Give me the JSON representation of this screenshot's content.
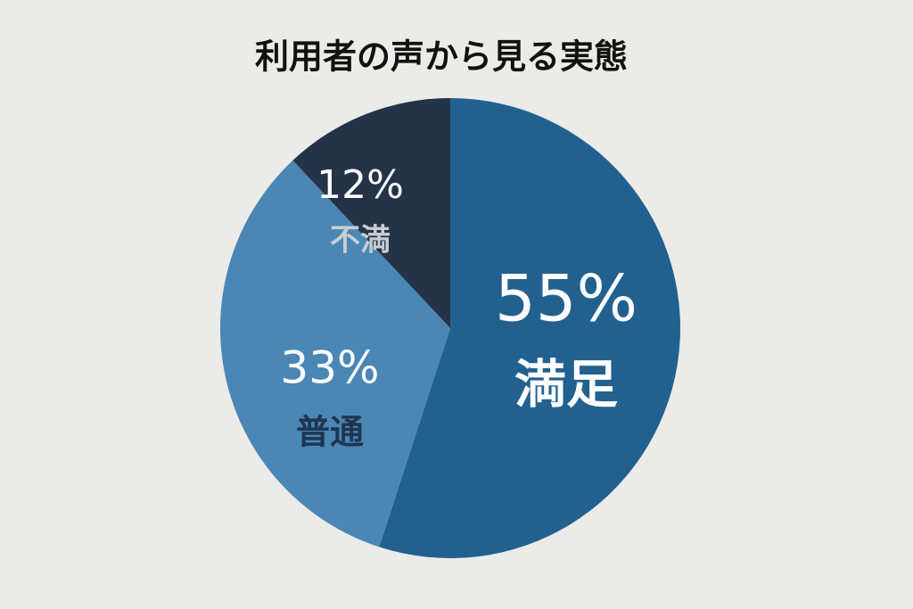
{
  "chart_data": {
    "type": "pie",
    "title": "利用者の声から見る実態",
    "categories": [
      "満足",
      "普通",
      "不満"
    ],
    "values": [
      55,
      33,
      12
    ],
    "value_labels": [
      "55%",
      "33%",
      "12%"
    ],
    "colors": [
      "#22618f",
      "#4a87b5",
      "#243347"
    ]
  }
}
